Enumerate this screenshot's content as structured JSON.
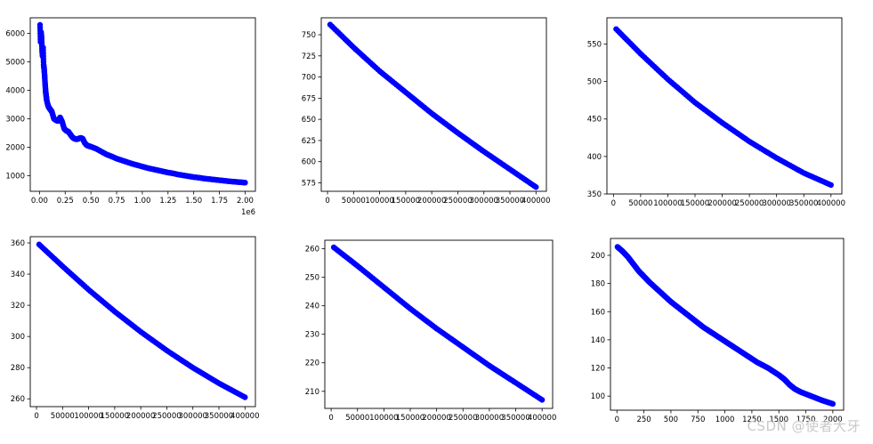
{
  "watermark": "CSDN @使者大牙",
  "chart_data": [
    {
      "type": "scatter",
      "title": "",
      "xlabel": "",
      "ylabel": "",
      "x_exponent_label": "1e6",
      "xlim": [
        -0.09,
        2.1
      ],
      "ylim": [
        450,
        6550
      ],
      "xticks": [
        0.0,
        0.25,
        0.5,
        0.75,
        1.0,
        1.25,
        1.5,
        1.75,
        2.0
      ],
      "xtick_labels": [
        "0.00",
        "0.25",
        "0.50",
        "0.75",
        "1.00",
        "1.25",
        "1.50",
        "1.75",
        "2.00"
      ],
      "yticks": [
        1000,
        2000,
        3000,
        4000,
        5000,
        6000
      ],
      "ytick_labels": [
        "1000",
        "2000",
        "3000",
        "4000",
        "5000",
        "6000"
      ],
      "color": "#0000ff",
      "grid": false,
      "points": [
        [
          0.005,
          6300
        ],
        [
          0.01,
          5700
        ],
        [
          0.015,
          6050
        ],
        [
          0.02,
          5850
        ],
        [
          0.025,
          5400
        ],
        [
          0.03,
          5200
        ],
        [
          0.035,
          5500
        ],
        [
          0.04,
          4900
        ],
        [
          0.045,
          4750
        ],
        [
          0.05,
          4500
        ],
        [
          0.055,
          4200
        ],
        [
          0.06,
          3950
        ],
        [
          0.065,
          3800
        ],
        [
          0.07,
          3650
        ],
        [
          0.08,
          3500
        ],
        [
          0.09,
          3400
        ],
        [
          0.1,
          3350
        ],
        [
          0.11,
          3300
        ],
        [
          0.12,
          3250
        ],
        [
          0.14,
          3000
        ],
        [
          0.16,
          2950
        ],
        [
          0.18,
          2920
        ],
        [
          0.2,
          3050
        ],
        [
          0.22,
          2900
        ],
        [
          0.24,
          2650
        ],
        [
          0.26,
          2580
        ],
        [
          0.28,
          2550
        ],
        [
          0.3,
          2450
        ],
        [
          0.32,
          2350
        ],
        [
          0.34,
          2300
        ],
        [
          0.36,
          2280
        ],
        [
          0.38,
          2300
        ],
        [
          0.4,
          2330
        ],
        [
          0.42,
          2300
        ],
        [
          0.44,
          2150
        ],
        [
          0.46,
          2070
        ],
        [
          0.48,
          2040
        ],
        [
          0.5,
          2020
        ],
        [
          0.55,
          1950
        ],
        [
          0.6,
          1850
        ],
        [
          0.65,
          1750
        ],
        [
          0.7,
          1680
        ],
        [
          0.75,
          1600
        ],
        [
          0.8,
          1540
        ],
        [
          0.85,
          1480
        ],
        [
          0.9,
          1420
        ],
        [
          0.95,
          1370
        ],
        [
          1.0,
          1320
        ],
        [
          1.05,
          1270
        ],
        [
          1.1,
          1230
        ],
        [
          1.15,
          1190
        ],
        [
          1.2,
          1150
        ],
        [
          1.25,
          1110
        ],
        [
          1.3,
          1080
        ],
        [
          1.35,
          1040
        ],
        [
          1.4,
          1010
        ],
        [
          1.45,
          980
        ],
        [
          1.5,
          950
        ],
        [
          1.55,
          930
        ],
        [
          1.6,
          900
        ],
        [
          1.65,
          880
        ],
        [
          1.7,
          860
        ],
        [
          1.75,
          840
        ],
        [
          1.8,
          820
        ],
        [
          1.85,
          800
        ],
        [
          1.9,
          785
        ],
        [
          1.95,
          770
        ],
        [
          2.0,
          755
        ]
      ]
    },
    {
      "type": "scatter",
      "title": "",
      "xlabel": "",
      "ylabel": "",
      "xlim": [
        -12000,
        420000
      ],
      "ylim": [
        565,
        770
      ],
      "xticks": [
        0,
        50000,
        100000,
        150000,
        200000,
        250000,
        300000,
        350000,
        400000
      ],
      "xtick_labels": [
        "0",
        "50000",
        "100000",
        "150000",
        "200000",
        "250000",
        "300000",
        "350000",
        "400000"
      ],
      "yticks": [
        575,
        600,
        625,
        650,
        675,
        700,
        725,
        750
      ],
      "ytick_labels": [
        "575",
        "600",
        "625",
        "650",
        "675",
        "700",
        "725",
        "750"
      ],
      "color": "#0000ff",
      "grid": false,
      "points": [
        [
          5000,
          762
        ],
        [
          50000,
          735
        ],
        [
          100000,
          707
        ],
        [
          150000,
          682
        ],
        [
          200000,
          657
        ],
        [
          250000,
          634
        ],
        [
          300000,
          612
        ],
        [
          350000,
          591
        ],
        [
          400000,
          570
        ]
      ]
    },
    {
      "type": "scatter",
      "title": "",
      "xlabel": "",
      "ylabel": "",
      "xlim": [
        -12000,
        420000
      ],
      "ylim": [
        350,
        585
      ],
      "xticks": [
        0,
        50000,
        100000,
        150000,
        200000,
        250000,
        300000,
        350000,
        400000
      ],
      "xtick_labels": [
        "0",
        "50000",
        "100000",
        "150000",
        "200000",
        "250000",
        "300000",
        "350000",
        "400000"
      ],
      "yticks": [
        350,
        400,
        450,
        500,
        550
      ],
      "ytick_labels": [
        "350",
        "400",
        "450",
        "500",
        "550"
      ],
      "color": "#0000ff",
      "grid": false,
      "points": [
        [
          5000,
          570
        ],
        [
          50000,
          537
        ],
        [
          100000,
          503
        ],
        [
          150000,
          472
        ],
        [
          200000,
          445
        ],
        [
          250000,
          420
        ],
        [
          300000,
          398
        ],
        [
          350000,
          378
        ],
        [
          400000,
          362
        ]
      ]
    },
    {
      "type": "scatter",
      "title": "",
      "xlabel": "",
      "ylabel": "",
      "xlim": [
        -12000,
        420000
      ],
      "ylim": [
        255,
        364
      ],
      "xticks": [
        0,
        50000,
        100000,
        150000,
        200000,
        250000,
        300000,
        350000,
        400000
      ],
      "xtick_labels": [
        "0",
        "50000",
        "100000",
        "150000",
        "200000",
        "250000",
        "300000",
        "350000",
        "400000"
      ],
      "yticks": [
        260,
        280,
        300,
        320,
        340,
        360
      ],
      "ytick_labels": [
        "260",
        "280",
        "300",
        "320",
        "340",
        "360"
      ],
      "color": "#0000ff",
      "grid": false,
      "points": [
        [
          5000,
          359
        ],
        [
          50000,
          345
        ],
        [
          100000,
          330
        ],
        [
          150000,
          316
        ],
        [
          200000,
          303
        ],
        [
          250000,
          291
        ],
        [
          300000,
          280
        ],
        [
          350000,
          270
        ],
        [
          400000,
          261
        ]
      ]
    },
    {
      "type": "scatter",
      "title": "",
      "xlabel": "",
      "ylabel": "",
      "xlim": [
        -12000,
        420000
      ],
      "ylim": [
        204,
        263
      ],
      "xticks": [
        0,
        50000,
        100000,
        150000,
        200000,
        250000,
        300000,
        350000,
        400000
      ],
      "xtick_labels": [
        "0",
        "50000",
        "100000",
        "150000",
        "200000",
        "250000",
        "300000",
        "350000",
        "400000"
      ],
      "yticks": [
        210,
        220,
        230,
        240,
        250,
        260
      ],
      "ytick_labels": [
        "210",
        "220",
        "230",
        "240",
        "250",
        "260"
      ],
      "color": "#0000ff",
      "grid": false,
      "points": [
        [
          5000,
          260.5
        ],
        [
          50000,
          254
        ],
        [
          100000,
          246.5
        ],
        [
          150000,
          239
        ],
        [
          200000,
          232
        ],
        [
          250000,
          225.5
        ],
        [
          300000,
          219
        ],
        [
          350000,
          213
        ],
        [
          400000,
          207
        ]
      ]
    },
    {
      "type": "scatter",
      "title": "",
      "xlabel": "",
      "ylabel": "",
      "xlim": [
        -60,
        2100
      ],
      "ylim": [
        90,
        212
      ],
      "xticks": [
        0,
        250,
        500,
        750,
        1000,
        1250,
        1500,
        1750,
        2000
      ],
      "xtick_labels": [
        "0",
        "250",
        "500",
        "750",
        "1000",
        "1250",
        "1500",
        "1750",
        "2000"
      ],
      "yticks": [
        100,
        120,
        140,
        160,
        180,
        200
      ],
      "ytick_labels": [
        "100",
        "120",
        "140",
        "160",
        "180",
        "200"
      ],
      "color": "#0000ff",
      "grid": false,
      "points": [
        [
          5,
          206
        ],
        [
          50,
          203
        ],
        [
          100,
          199
        ],
        [
          150,
          194
        ],
        [
          200,
          189
        ],
        [
          250,
          185
        ],
        [
          300,
          181
        ],
        [
          400,
          174
        ],
        [
          500,
          167
        ],
        [
          600,
          161
        ],
        [
          700,
          155
        ],
        [
          800,
          149
        ],
        [
          900,
          144
        ],
        [
          1000,
          139
        ],
        [
          1100,
          134
        ],
        [
          1200,
          129
        ],
        [
          1300,
          124
        ],
        [
          1400,
          120
        ],
        [
          1500,
          115
        ],
        [
          1550,
          112
        ],
        [
          1600,
          108
        ],
        [
          1650,
          105
        ],
        [
          1700,
          103
        ],
        [
          1800,
          100
        ],
        [
          1900,
          97
        ],
        [
          2000,
          94.5
        ]
      ]
    }
  ]
}
